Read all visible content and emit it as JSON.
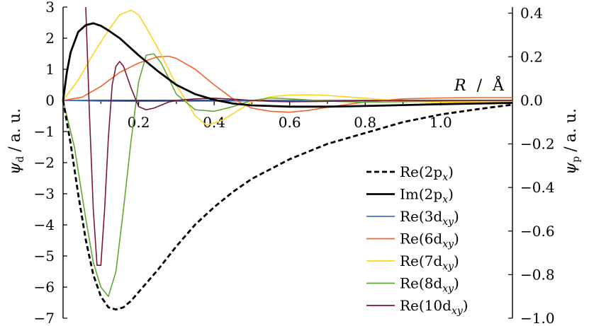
{
  "chart_data": {
    "type": "line",
    "x_axis": {
      "label_var": "R",
      "label_unit": "Å",
      "ticks": [
        0.2,
        0.4,
        0.6,
        0.8,
        1.0
      ],
      "tick_labels": [
        "0.2",
        "0.4",
        "0.6",
        "0.8",
        "1.0"
      ],
      "range": [
        0,
        1.19
      ]
    },
    "y_left": {
      "label_var": "ψ",
      "label_sub": "d",
      "label_unit": "a. u.",
      "range": [
        -7,
        3
      ],
      "ticks": [
        3,
        2,
        1,
        0,
        -1,
        -2,
        -3,
        -4,
        -5,
        -6,
        -7
      ],
      "tick_labels": [
        "3",
        "2",
        "1",
        "0",
        "−1",
        "−2",
        "−3",
        "−4",
        "−5",
        "−6",
        "−7"
      ]
    },
    "y_right": {
      "label_var": "ψ",
      "label_sub": "p",
      "label_unit": "a. u.",
      "range": [
        -1.0,
        0.428
      ],
      "ticks": [
        0.4,
        0.2,
        0.0,
        -0.2,
        -0.4,
        -0.6,
        -0.8,
        -1.0
      ],
      "tick_labels": [
        "0.4",
        "0.2",
        "0.0",
        "−0.2",
        "−0.4",
        "−0.6",
        "−0.8",
        "−1.0"
      ]
    },
    "legend_position": "bottom-right",
    "series": [
      {
        "name": "Re(2p",
        "name_sub": "x",
        "axis": "right",
        "color": "#000000",
        "dash": true,
        "x": [
          0,
          0.02,
          0.04,
          0.06,
          0.08,
          0.1,
          0.12,
          0.14,
          0.16,
          0.18,
          0.2,
          0.25,
          0.3,
          0.35,
          0.4,
          0.45,
          0.5,
          0.6,
          0.7,
          0.8,
          0.9,
          1.0,
          1.1,
          1.19
        ],
        "y": [
          0.0,
          -0.2,
          -0.43,
          -0.64,
          -0.8,
          -0.9,
          -0.95,
          -0.96,
          -0.95,
          -0.92,
          -0.88,
          -0.78,
          -0.67,
          -0.57,
          -0.49,
          -0.42,
          -0.36,
          -0.27,
          -0.2,
          -0.15,
          -0.1,
          -0.065,
          -0.04,
          -0.02
        ]
      },
      {
        "name": "Im(2p",
        "name_sub": "x",
        "axis": "left",
        "color": "#000000",
        "dash": false,
        "x": [
          0,
          0.01,
          0.02,
          0.04,
          0.06,
          0.08,
          0.1,
          0.12,
          0.15,
          0.2,
          0.25,
          0.3,
          0.35,
          0.4,
          0.45,
          0.5,
          0.6,
          0.7,
          0.8,
          0.9,
          1.0,
          1.1,
          1.19
        ],
        "y": [
          0.0,
          0.9,
          1.55,
          2.2,
          2.42,
          2.48,
          2.4,
          2.25,
          2.0,
          1.45,
          0.95,
          0.5,
          0.2,
          0.02,
          -0.1,
          -0.16,
          -0.2,
          -0.2,
          -0.18,
          -0.15,
          -0.12,
          -0.1,
          -0.08
        ]
      },
      {
        "name": "Re(3d",
        "name_sub": "xy",
        "axis": "left",
        "color": "#4472c4",
        "dash": false,
        "x": [
          0,
          0.1,
          0.2,
          0.4,
          0.6,
          0.8,
          1.0,
          1.19
        ],
        "y": [
          0.0,
          -0.02,
          -0.03,
          -0.02,
          -0.01,
          0.0,
          0.0,
          0.0
        ]
      },
      {
        "name": "Re(6d",
        "name_sub": "xy",
        "axis": "left",
        "color": "#f4622a",
        "dash": false,
        "x": [
          0,
          0.05,
          0.1,
          0.15,
          0.2,
          0.25,
          0.28,
          0.3,
          0.35,
          0.4,
          0.45,
          0.5,
          0.55,
          0.6,
          0.65,
          0.7,
          0.8,
          0.9,
          1.0,
          1.1,
          1.19
        ],
        "y": [
          0.0,
          0.1,
          0.45,
          0.9,
          1.2,
          1.4,
          1.42,
          1.35,
          1.0,
          0.5,
          0.05,
          -0.25,
          -0.35,
          -0.38,
          -0.32,
          -0.22,
          -0.05,
          0.05,
          0.08,
          0.09,
          0.09
        ]
      },
      {
        "name": "Re(7d",
        "name_sub": "xy",
        "axis": "left",
        "color": "#ffd21e",
        "dash": false,
        "x": [
          0,
          0.04,
          0.08,
          0.12,
          0.15,
          0.18,
          0.2,
          0.22,
          0.25,
          0.3,
          0.35,
          0.38,
          0.42,
          0.5,
          0.55,
          0.6,
          0.65,
          0.7,
          0.8,
          0.9,
          1.0,
          1.1,
          1.19
        ],
        "y": [
          0.0,
          0.65,
          1.5,
          2.25,
          2.75,
          2.9,
          2.75,
          2.35,
          1.7,
          0.5,
          -0.5,
          -0.8,
          -0.65,
          -0.05,
          0.12,
          0.17,
          0.18,
          0.16,
          0.07,
          -0.02,
          -0.06,
          -0.05,
          -0.03
        ]
      },
      {
        "name": "Re(8d",
        "name_sub": "xy",
        "axis": "left",
        "color": "#5fa832",
        "dash": false,
        "x": [
          0,
          0.03,
          0.06,
          0.08,
          0.1,
          0.12,
          0.14,
          0.16,
          0.18,
          0.2,
          0.22,
          0.24,
          0.26,
          0.28,
          0.3,
          0.35,
          0.4,
          0.45,
          0.5,
          0.55,
          0.6,
          0.7,
          0.8,
          0.9,
          1.0,
          1.1,
          1.19
        ],
        "y": [
          0.0,
          -1.5,
          -3.8,
          -5.2,
          -6.0,
          -6.3,
          -5.5,
          -3.5,
          -1.3,
          0.6,
          1.45,
          1.5,
          1.2,
          0.7,
          0.2,
          -0.3,
          -0.35,
          -0.2,
          0.0,
          0.08,
          0.05,
          -0.02,
          -0.06,
          -0.04,
          -0.02,
          -0.01,
          0.0
        ]
      },
      {
        "name": "Re(10d",
        "name_sub": "xy",
        "axis": "left",
        "color": "#7b1535",
        "dash": false,
        "x": [
          0.06,
          0.07,
          0.08,
          0.09,
          0.1,
          0.11,
          0.12,
          0.13,
          0.14,
          0.15,
          0.16,
          0.18,
          0.2,
          0.22,
          0.24,
          0.26,
          0.28,
          0.3,
          0.35,
          0.4,
          0.45,
          0.5,
          0.55,
          0.6,
          0.7,
          0.8,
          0.9,
          1.0,
          1.1,
          1.19
        ],
        "y": [
          3.0,
          -0.5,
          -3.5,
          -5.3,
          -5.3,
          -3.5,
          -1.2,
          0.5,
          1.1,
          1.25,
          1.1,
          0.4,
          -0.2,
          -0.3,
          -0.25,
          -0.15,
          -0.05,
          0.0,
          0.05,
          0.07,
          0.04,
          0.0,
          -0.03,
          -0.04,
          -0.03,
          -0.01,
          0.0,
          0.0,
          0.0,
          0.0
        ]
      }
    ]
  }
}
